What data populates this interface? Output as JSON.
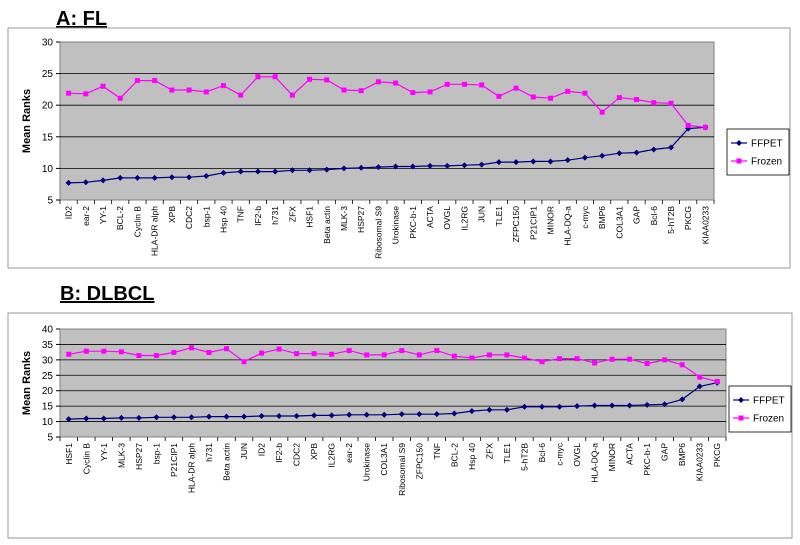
{
  "chart_data": [
    {
      "type": "line",
      "panel_label": "A: FL",
      "ylabel": "Mean Ranks",
      "ylim": [
        5,
        30
      ],
      "yticks": [
        5,
        10,
        15,
        20,
        25,
        30
      ],
      "grid": true,
      "legend": "right",
      "categories": [
        "ID2",
        "ear-2",
        "YY-1",
        "BCL-2",
        "Cyclin B",
        "HLA-DR alph",
        "XPB",
        "CDC2",
        "bsp-1",
        "Hsp 40",
        "TNF",
        "IF2-b",
        "h731",
        "ZFX",
        "HSF1",
        "Beta actin",
        "MLK-3",
        "HSP27",
        "Ribosomal S9",
        "Urokinase",
        "PKC-b-1",
        "ACTA",
        "OVGL",
        "IL2RG",
        "JUN",
        "TLE1",
        "ZFPC150",
        "P21CIP1",
        "MINOR",
        "HLA-DQ-a",
        "c-myc",
        "BMP6",
        "COL3A1",
        "GAP",
        "Bcl-6",
        "5-hT2B",
        "PKCG",
        "KIAA0233"
      ],
      "series": [
        {
          "name": "FFPET",
          "color": "#000080",
          "marker": "diamond",
          "values": [
            7.7,
            7.8,
            8.1,
            8.5,
            8.5,
            8.5,
            8.6,
            8.6,
            8.8,
            9.3,
            9.5,
            9.5,
            9.5,
            9.7,
            9.7,
            9.8,
            10.0,
            10.1,
            10.2,
            10.3,
            10.3,
            10.4,
            10.4,
            10.5,
            10.6,
            11.0,
            11.0,
            11.1,
            11.1,
            11.3,
            11.7,
            12.0,
            12.4,
            12.5,
            13.0,
            13.3,
            16.3,
            16.5
          ]
        },
        {
          "name": "Frozen",
          "color": "#FF00FF",
          "marker": "square",
          "values": [
            21.9,
            21.8,
            23.0,
            21.1,
            23.9,
            23.9,
            22.4,
            22.4,
            22.1,
            23.1,
            21.6,
            24.5,
            24.5,
            21.6,
            24.1,
            24.0,
            22.4,
            22.3,
            23.7,
            23.5,
            22.0,
            22.1,
            23.3,
            23.3,
            23.2,
            21.4,
            22.7,
            21.3,
            21.1,
            22.2,
            21.9,
            18.9,
            21.2,
            20.9,
            20.4,
            20.3,
            16.8,
            16.5
          ]
        }
      ]
    },
    {
      "type": "line",
      "panel_label": "B: DLBCL",
      "ylabel": "Mean Ranks",
      "ylim": [
        5,
        40
      ],
      "yticks": [
        5,
        10,
        15,
        20,
        25,
        30,
        35,
        40
      ],
      "grid": true,
      "legend": "right",
      "categories": [
        "HSF1",
        "Cyclin B",
        "YY-1",
        "MLK-3",
        "HSP27",
        "bsp-1",
        "P21CIP1",
        "HLA-DR alph",
        "h731",
        "Beta actin",
        "JUN",
        "ID2",
        "IF2-b",
        "CDC2",
        "XPB",
        "IL2RG",
        "ear-2",
        "Urokinase",
        "COL3A1",
        "Ribosomal S9",
        "ZFPC150",
        "TNF",
        "BCL-2",
        "Hsp 40",
        "ZFX",
        "TLE1",
        "5-hT2B",
        "Bcl-6",
        "c-myc",
        "OVGL",
        "HLA-DQ-a",
        "MINOR",
        "ACTA",
        "PKC-b-1",
        "GAP",
        "BMP6",
        "KIAA0233",
        "PKCG"
      ],
      "series": [
        {
          "name": "FFPET",
          "color": "#000080",
          "marker": "diamond",
          "values": [
            10.8,
            11.0,
            11.0,
            11.2,
            11.2,
            11.4,
            11.4,
            11.4,
            11.6,
            11.6,
            11.6,
            11.8,
            11.8,
            11.8,
            12.0,
            12.0,
            12.2,
            12.2,
            12.2,
            12.4,
            12.4,
            12.4,
            12.6,
            13.4,
            13.8,
            13.8,
            14.8,
            14.8,
            14.8,
            15.0,
            15.2,
            15.2,
            15.2,
            15.4,
            15.6,
            17.2,
            21.4,
            22.6
          ]
        },
        {
          "name": "Frozen",
          "color": "#FF00FF",
          "marker": "square",
          "values": [
            31.8,
            32.8,
            32.8,
            32.6,
            31.4,
            31.4,
            32.4,
            33.9,
            32.4,
            33.6,
            29.4,
            32.2,
            33.5,
            32.0,
            32.0,
            31.8,
            33.0,
            31.6,
            31.6,
            33.0,
            31.6,
            33.0,
            31.2,
            30.6,
            31.6,
            31.6,
            30.6,
            29.4,
            30.4,
            30.4,
            29.0,
            30.2,
            30.2,
            28.8,
            30.0,
            28.4,
            24.4,
            23.0
          ]
        }
      ]
    }
  ]
}
